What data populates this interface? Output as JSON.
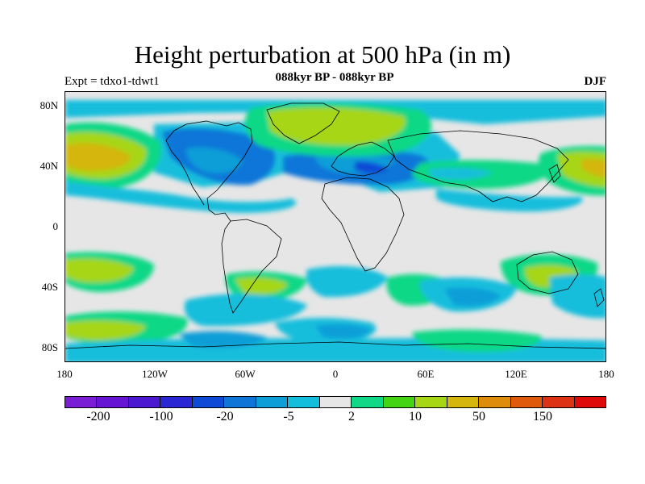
{
  "title": "Height perturbation at 500 hPa (in m)",
  "expt_label": "Expt = tdxo1-tdwt1",
  "period_label": "088kyr BP - 088kyr BP",
  "season_label": "DJF",
  "lat_labels": [
    "80N",
    "40N",
    "0",
    "40S",
    "80S"
  ],
  "lon_labels": [
    "180",
    "120W",
    "60W",
    "0",
    "60E",
    "120E",
    "180"
  ],
  "colorbar": {
    "colors": [
      "#7a1ed6",
      "#6616d2",
      "#4b1ad0",
      "#2a26d4",
      "#0f4ad6",
      "#0f76d8",
      "#0d9ed8",
      "#12bedc",
      "#e6e6e6",
      "#10d886",
      "#44d414",
      "#a6d614",
      "#d4b60c",
      "#de8c0c",
      "#e05a0c",
      "#de3214",
      "#de0a0a"
    ],
    "labels": [
      "-200",
      "-100",
      "-20",
      "-5",
      "2",
      "10",
      "50",
      "150"
    ]
  },
  "chart_data": {
    "type": "heatmap",
    "title": "Height perturbation at 500 hPa (in m)",
    "projection": "cylindrical equidistant",
    "lon_range": [
      -180,
      180
    ],
    "lat_range": [
      -90,
      90
    ],
    "background_value_range": "near zero",
    "features": [
      {
        "region": "North Pacific (~40N, 180)",
        "sign": "positive",
        "approx_max_m": 50
      },
      {
        "region": "Greenland / North Atlantic (~70N, 40W-30E)",
        "sign": "positive",
        "approx_max_m": 20
      },
      {
        "region": "North America (~50N, 120W-70W)",
        "sign": "negative",
        "approx_min_m": -20
      },
      {
        "region": "Europe / West Asia (~40N, 0-60E)",
        "sign": "negative",
        "approx_min_m": -20
      },
      {
        "region": "Northwest Pacific (~40N, 140E-180)",
        "sign": "positive",
        "approx_max_m": 50
      },
      {
        "region": "Southern Ocean (~60S)",
        "sign": "negative",
        "approx_min_m": -20
      },
      {
        "region": "South Pacific (~40S, 160W)",
        "sign": "positive",
        "approx_max_m": 10
      }
    ]
  }
}
